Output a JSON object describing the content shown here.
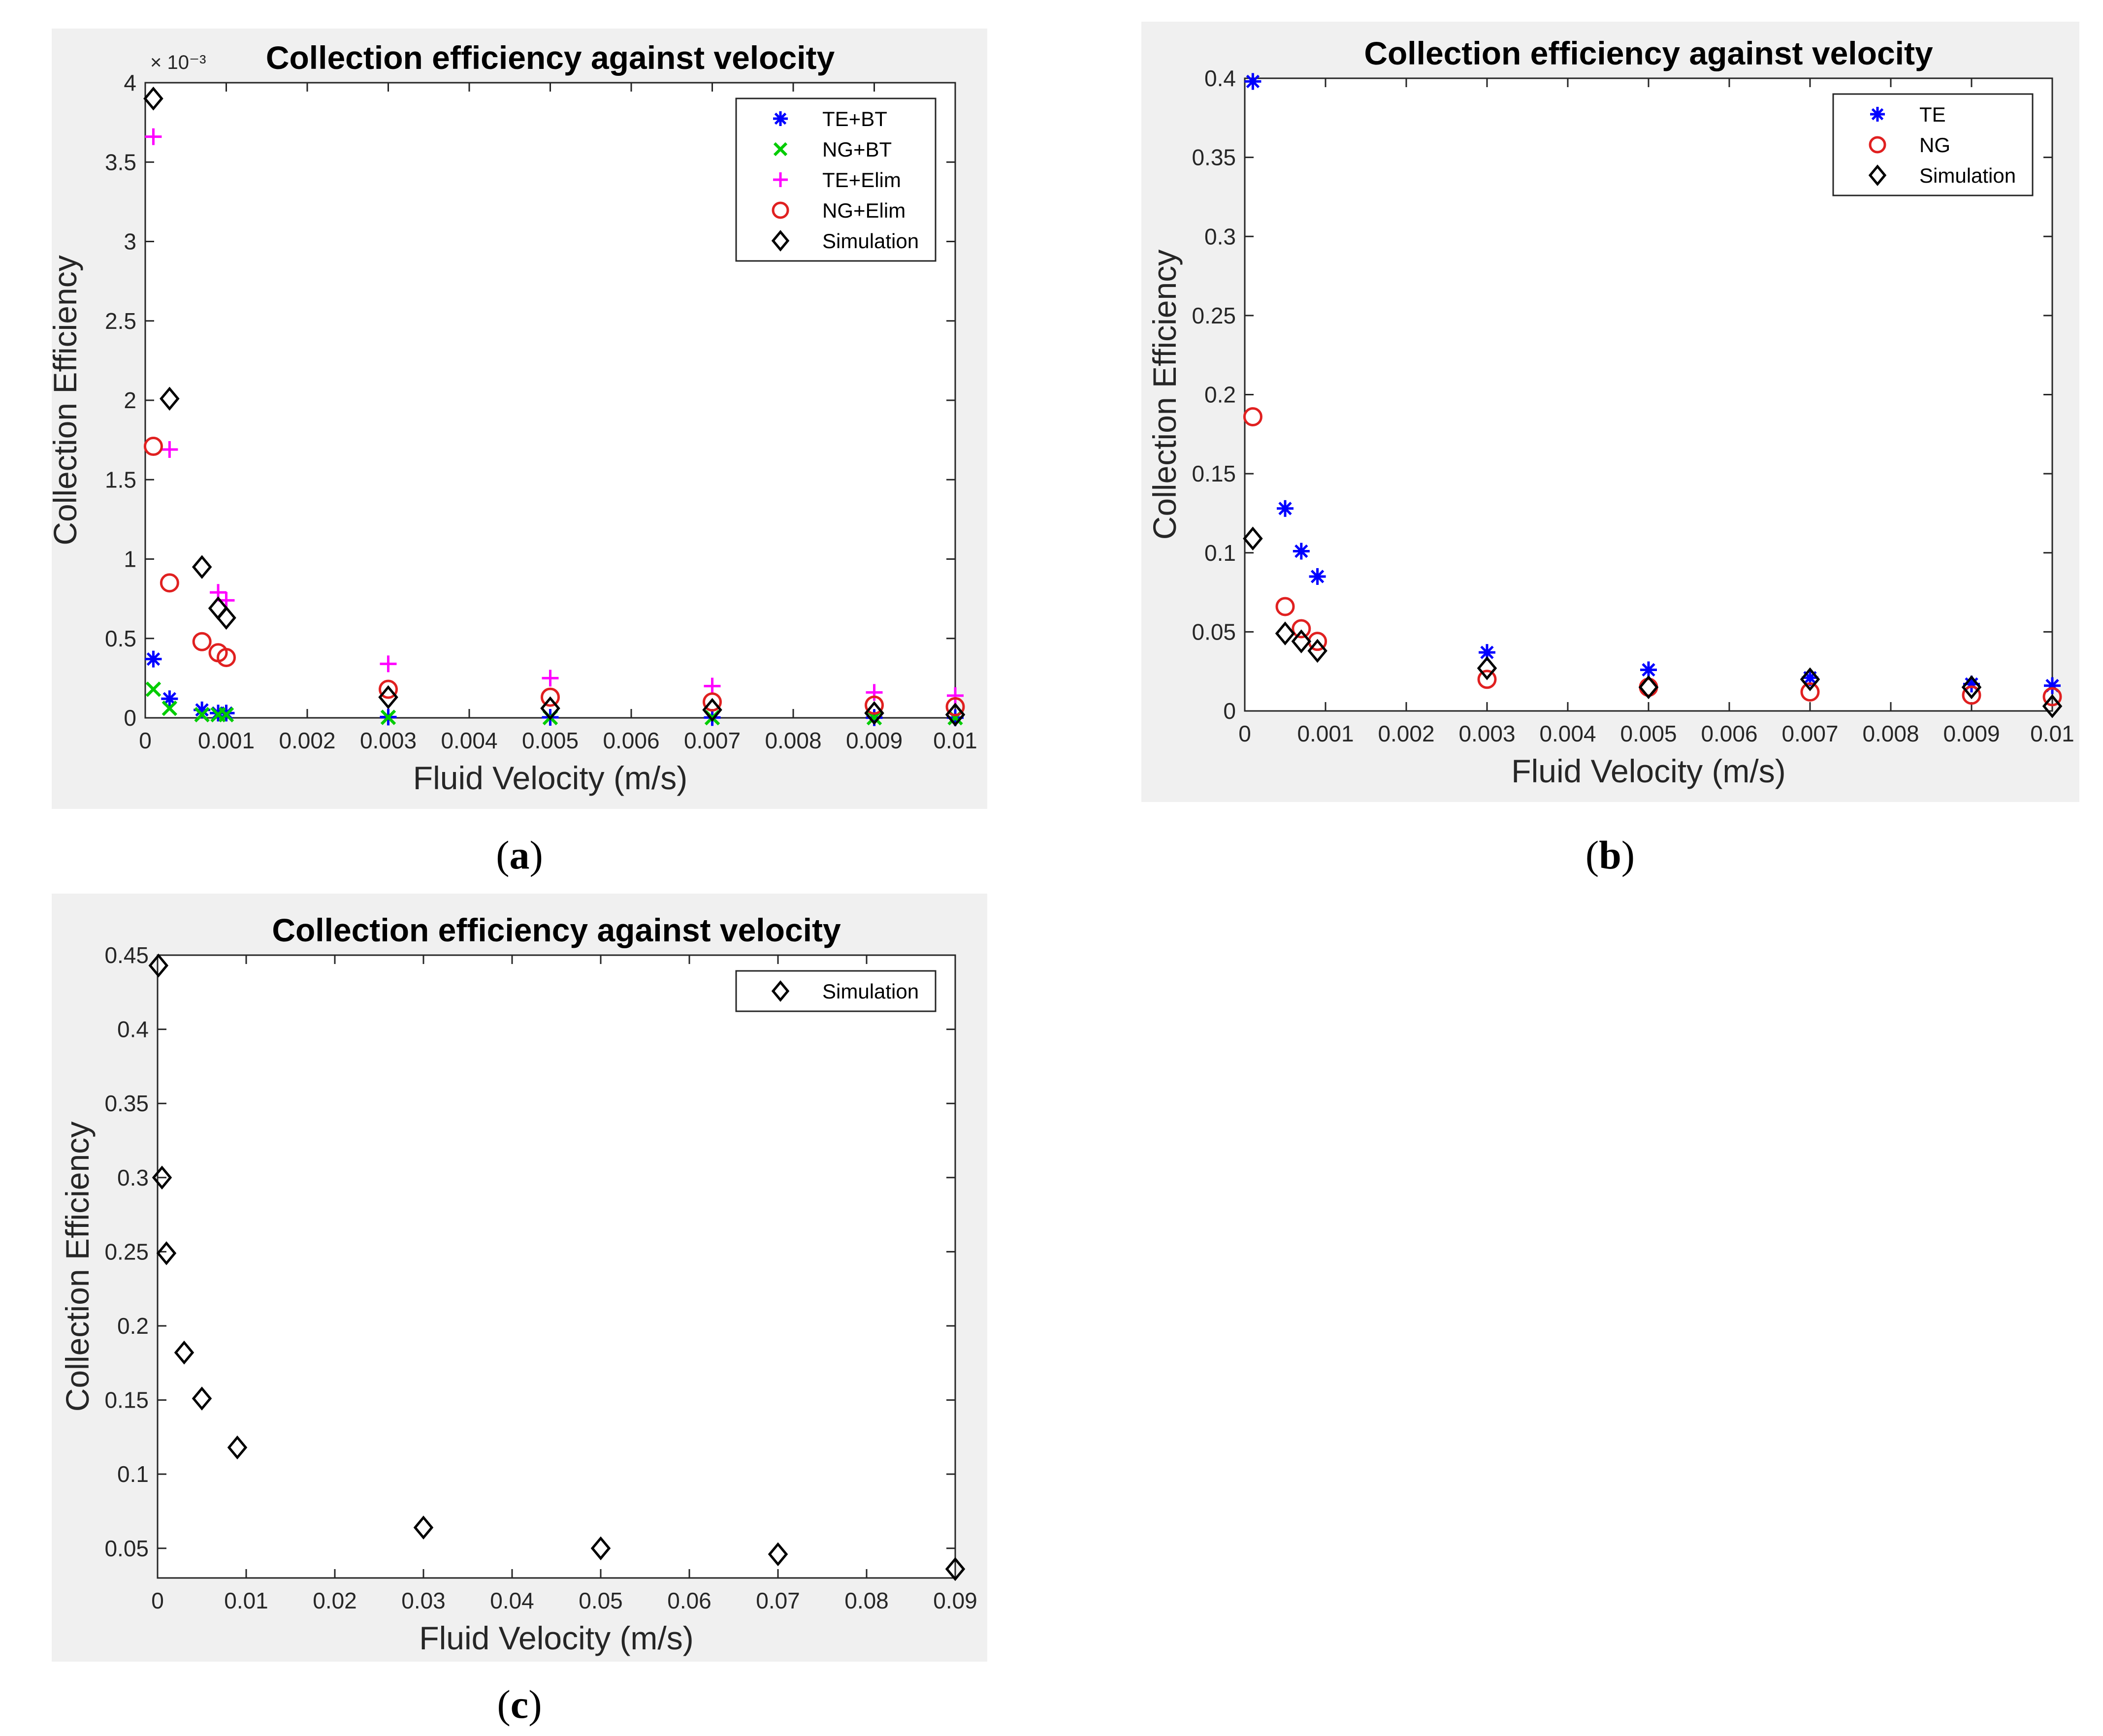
{
  "chart_data": [
    {
      "id": "a",
      "caption": "a",
      "type": "scatter",
      "title": "Collection efficiency against velocity",
      "xlabel": "Fluid Velocity (m/s)",
      "ylabel": "Collection Efficiency",
      "y_multiplier": "× 10⁻³",
      "xlim": [
        0,
        0.01
      ],
      "ylim": [
        0,
        4
      ],
      "xticks": [
        "0",
        "0.001",
        "0.002",
        "0.003",
        "0.004",
        "0.005",
        "0.006",
        "0.007",
        "0.008",
        "0.009",
        "0.01"
      ],
      "yticks": [
        "0",
        "0.5",
        "1",
        "1.5",
        "2",
        "2.5",
        "3",
        "3.5",
        "4"
      ],
      "legend_position": "top-right",
      "series": [
        {
          "name": "TE+BT",
          "marker": "asterisk",
          "color": "#0000ff",
          "x": [
            0.0001,
            0.0003,
            0.0007,
            0.0009,
            0.001,
            0.003,
            0.005,
            0.007,
            0.009,
            0.01
          ],
          "y": [
            0.37,
            0.12,
            0.05,
            0.03,
            0.03,
            0.005,
            0.003,
            0.002,
            0.001,
            0.001
          ]
        },
        {
          "name": "NG+BT",
          "marker": "x",
          "color": "#00cc00",
          "x": [
            0.0001,
            0.0003,
            0.0007,
            0.0009,
            0.001,
            0.003,
            0.005,
            0.007,
            0.009,
            0.01
          ],
          "y": [
            0.18,
            0.06,
            0.02,
            0.02,
            0.02,
            0.003,
            0.002,
            0.001,
            0.001,
            0.001
          ]
        },
        {
          "name": "TE+Elim",
          "marker": "plus",
          "color": "#ff00ff",
          "x": [
            0.0001,
            0.0003,
            0.0009,
            0.001,
            0.003,
            0.005,
            0.007,
            0.009,
            0.01
          ],
          "y": [
            3.66,
            1.69,
            0.79,
            0.74,
            0.34,
            0.25,
            0.2,
            0.16,
            0.14
          ]
        },
        {
          "name": "NG+Elim",
          "marker": "circle",
          "color": "#e02020",
          "x": [
            0.0001,
            0.0003,
            0.0007,
            0.0009,
            0.001,
            0.003,
            0.005,
            0.007,
            0.009,
            0.01
          ],
          "y": [
            1.71,
            0.85,
            0.48,
            0.41,
            0.38,
            0.18,
            0.13,
            0.1,
            0.08,
            0.07
          ]
        },
        {
          "name": "Simulation",
          "marker": "diamond",
          "color": "#000000",
          "x": [
            0.0001,
            0.0003,
            0.0007,
            0.0009,
            0.001,
            0.003,
            0.005,
            0.007,
            0.009,
            0.01
          ],
          "y": [
            3.9,
            2.01,
            0.95,
            0.69,
            0.63,
            0.13,
            0.06,
            0.05,
            0.03,
            0.02
          ]
        }
      ]
    },
    {
      "id": "b",
      "caption": "b",
      "type": "scatter",
      "title": "Collection efficiency against velocity",
      "xlabel": "Fluid Velocity (m/s)",
      "ylabel": "Collection Efficiency",
      "xlim": [
        0,
        0.01
      ],
      "ylim": [
        0,
        0.4
      ],
      "xticks": [
        "0",
        "0.001",
        "0.002",
        "0.003",
        "0.004",
        "0.005",
        "0.006",
        "0.007",
        "0.008",
        "0.009",
        "0.01"
      ],
      "yticks": [
        "0",
        "0.05",
        "0.1",
        "0.15",
        "0.2",
        "0.25",
        "0.3",
        "0.35",
        "0.4"
      ],
      "legend_position": "top-right",
      "series": [
        {
          "name": "TE",
          "marker": "asterisk",
          "color": "#0000ff",
          "x": [
            0.0001,
            0.0005,
            0.0007,
            0.0009,
            0.003,
            0.005,
            0.007,
            0.009,
            0.01
          ],
          "y": [
            0.398,
            0.128,
            0.101,
            0.085,
            0.037,
            0.026,
            0.021,
            0.017,
            0.016
          ]
        },
        {
          "name": "NG",
          "marker": "circle",
          "color": "#e02020",
          "x": [
            0.0001,
            0.0005,
            0.0007,
            0.0009,
            0.003,
            0.005,
            0.007,
            0.009,
            0.01
          ],
          "y": [
            0.186,
            0.066,
            0.052,
            0.044,
            0.02,
            0.015,
            0.012,
            0.01,
            0.009
          ]
        },
        {
          "name": "Simulation",
          "marker": "diamond",
          "color": "#000000",
          "x": [
            0.0001,
            0.0005,
            0.0007,
            0.0009,
            0.003,
            0.005,
            0.007,
            0.009,
            0.01
          ],
          "y": [
            0.109,
            0.049,
            0.044,
            0.038,
            0.027,
            0.015,
            0.02,
            0.015,
            0.003
          ]
        }
      ]
    },
    {
      "id": "c",
      "caption": "c",
      "type": "scatter",
      "title": "Collection efficiency against velocity",
      "xlabel": "Fluid Velocity (m/s)",
      "ylabel": "Collection Efficiency",
      "xlim": [
        0,
        0.09
      ],
      "ylim": [
        0.03,
        0.45
      ],
      "xticks": [
        "0",
        "0.01",
        "0.02",
        "0.03",
        "0.04",
        "0.05",
        "0.06",
        "0.07",
        "0.08",
        "0.09"
      ],
      "yticks": [
        "0.05",
        "0.1",
        "0.15",
        "0.2",
        "0.25",
        "0.3",
        "0.35",
        "0.4",
        "0.45"
      ],
      "legend_position": "top-right",
      "series": [
        {
          "name": "Simulation",
          "marker": "diamond",
          "color": "#000000",
          "x": [
            0.0001,
            0.0005,
            0.001,
            0.003,
            0.005,
            0.009,
            0.03,
            0.05,
            0.07,
            0.09
          ],
          "y": [
            0.443,
            0.3,
            0.249,
            0.182,
            0.151,
            0.118,
            0.064,
            0.05,
            0.046,
            0.036
          ]
        }
      ]
    }
  ]
}
